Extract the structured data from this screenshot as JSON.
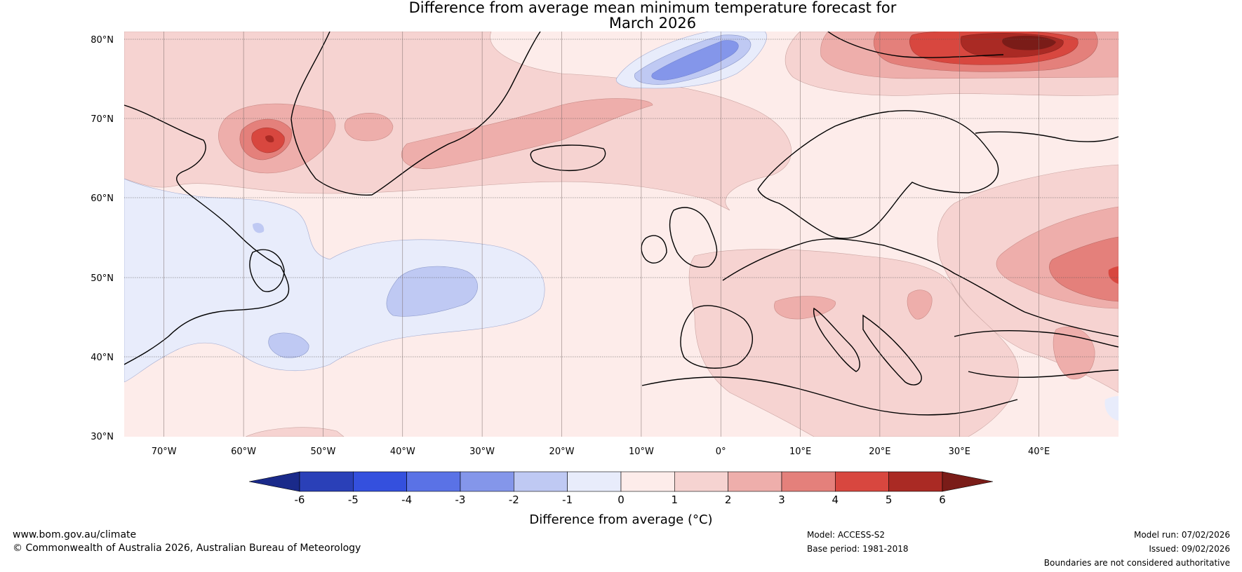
{
  "title": {
    "line1": "Difference from average mean minimum temperature forecast for",
    "line2": "March 2026"
  },
  "map": {
    "lat_labels": [
      "80°N",
      "70°N",
      "60°N",
      "50°N",
      "40°N",
      "30°N"
    ],
    "lon_labels": [
      "70°W",
      "60°W",
      "50°W",
      "40°W",
      "30°W",
      "20°W",
      "10°W",
      "0°",
      "10°E",
      "20°E",
      "30°E",
      "40°E"
    ],
    "region": "North Atlantic and Europe",
    "lon_range": [
      -75,
      50
    ],
    "lat_range": [
      30,
      81
    ]
  },
  "colorbar": {
    "tick_labels": [
      "-6",
      "-5",
      "-4",
      "-3",
      "-2",
      "-1",
      "0",
      "1",
      "2",
      "3",
      "4",
      "5",
      "6"
    ],
    "colors": [
      "#1a2a8a",
      "#2a40b8",
      "#3450de",
      "#5a72e6",
      "#8496ea",
      "#bfc9f3",
      "#e8ecfb",
      "#fdecea",
      "#f6d3d1",
      "#eeaeab",
      "#e4807b",
      "#d8473f",
      "#aa2a24",
      "#7a1c18"
    ],
    "label": "Difference from average (°C)"
  },
  "footer": {
    "website": "www.bom.gov.au/climate",
    "copyright": "© Commonwealth of Australia 2026, Australian Bureau of Meteorology",
    "model": "Model: ACCESS-S2",
    "base_period": "Base period: 1981-2018",
    "model_run": "Model run: 07/02/2026",
    "issued": "Issued: 09/02/2026",
    "disclaimer": "Boundaries are not considered authoritative"
  }
}
